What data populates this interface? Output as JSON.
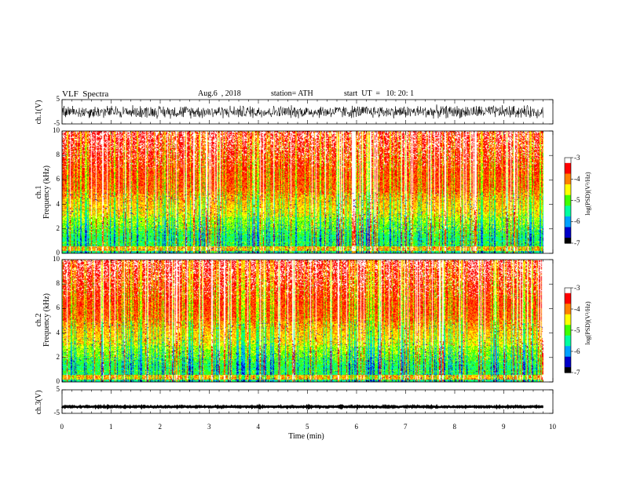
{
  "header": {
    "title": "VLF  Spectra",
    "date": "Aug.6  , 2018",
    "station": "station= ATH",
    "start": "start  UT  =   10: 20: 1"
  },
  "panels": {
    "ch1_wave_label": "ch.1(V)",
    "ch1_spec_label_line1": "ch.1",
    "ch1_spec_label_line2": "Frequency (kHz)",
    "ch2_spec_label_line1": "ch.2",
    "ch2_spec_label_line2": "Frequency (kHz)",
    "ch3_wave_label": "ch.3(V)",
    "colorbar_label": "log(PSD)(V²/Hz)"
  },
  "ticks": {
    "volt": [
      "5",
      "-5"
    ],
    "freq": [
      "10",
      "8",
      "6",
      "4",
      "2",
      "0"
    ],
    "time": [
      "0",
      "1",
      "2",
      "3",
      "4",
      "5",
      "6",
      "7",
      "8",
      "9",
      "10"
    ],
    "colorbar": [
      "-3",
      "-4",
      "-5",
      "-6",
      "-7"
    ]
  },
  "chart_data": [
    {
      "type": "line",
      "name": "ch.1(V)",
      "xlabel": "Time  (min)",
      "ylabel": "ch.1(V)",
      "xlim": [
        0,
        10
      ],
      "ylim": [
        -5,
        5
      ],
      "data_extent_min": 9.8,
      "baseline_v": 0,
      "noise_amplitude_v": 3
    },
    {
      "type": "heatmap",
      "name": "ch.1 spectrogram",
      "xlabel": "Time  (min)",
      "ylabel": "Frequency (kHz)",
      "xlim": [
        0,
        10
      ],
      "ylim": [
        0,
        10
      ],
      "color_scale": "log(PSD)(V²/Hz)",
      "clim": [
        -7,
        -3
      ],
      "colormap": [
        "#000000",
        "#0000c8",
        "#00a0ff",
        "#00ffa0",
        "#40ff00",
        "#ffff00",
        "#ff8000",
        "#ff0000",
        "#ffffff"
      ]
    },
    {
      "type": "heatmap",
      "name": "ch.2 spectrogram",
      "xlabel": "Time  (min)",
      "ylabel": "Frequency (kHz)",
      "xlim": [
        0,
        10
      ],
      "ylim": [
        0,
        10
      ],
      "color_scale": "log(PSD)(V²/Hz)",
      "clim": [
        -7,
        -3
      ],
      "colormap": [
        "#000000",
        "#0000c8",
        "#00a0ff",
        "#00ffa0",
        "#40ff00",
        "#ffff00",
        "#ff8000",
        "#ff0000",
        "#ffffff"
      ]
    },
    {
      "type": "line",
      "name": "ch.3(V)",
      "xlabel": "Time  (min)",
      "ylabel": "ch.3(V)",
      "xlim": [
        0,
        10
      ],
      "ylim": [
        -5,
        5
      ],
      "data_extent_min": 9.8,
      "baseline_v": -2.2,
      "noise_amplitude_v": 0.3
    }
  ],
  "xaxis_label": "Time  (min)"
}
